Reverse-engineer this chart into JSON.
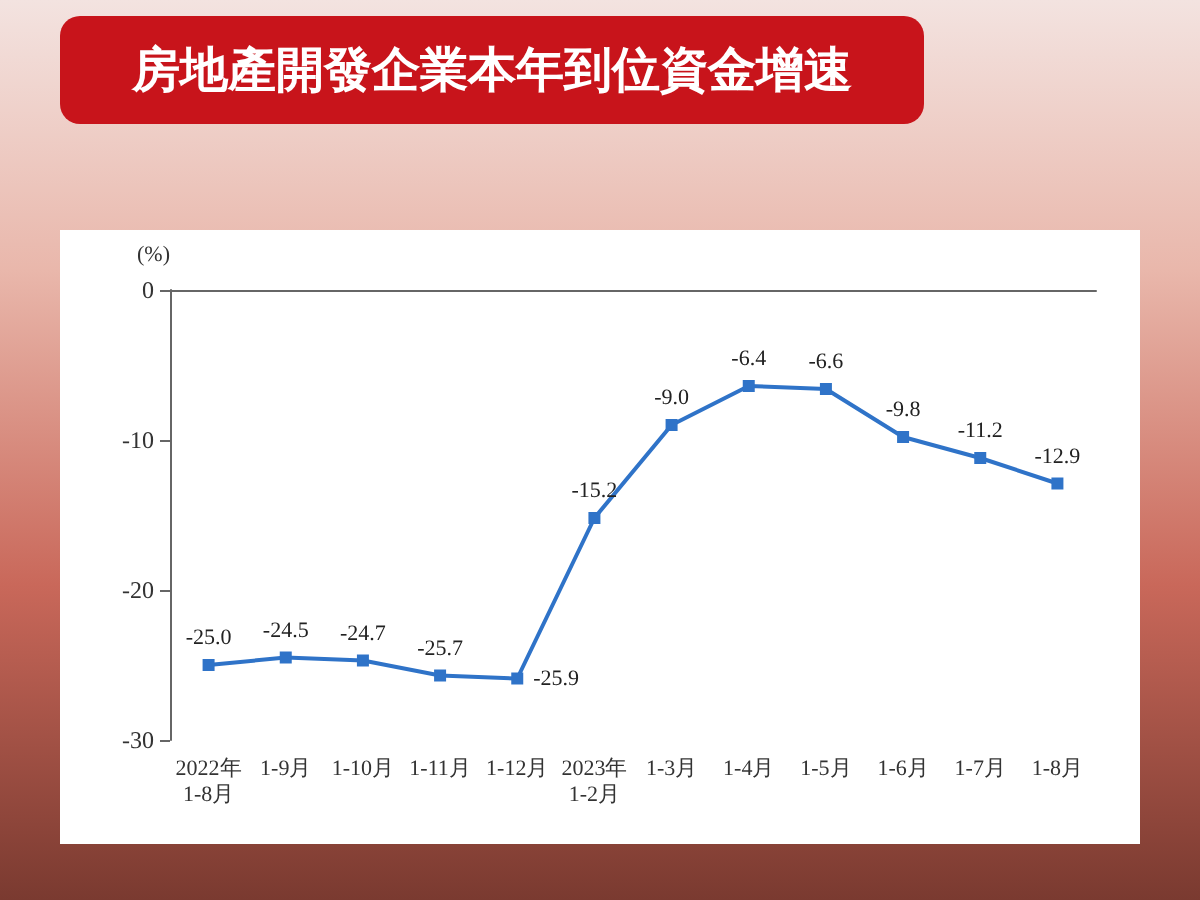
{
  "chart_data": {
    "type": "line",
    "title": "房地產開發企業本年到位資金增速",
    "ylabel": "(%)",
    "categories": [
      "2022年\n1-8月",
      "1-9月",
      "1-10月",
      "1-11月",
      "1-12月",
      "2023年\n1-2月",
      "1-3月",
      "1-4月",
      "1-5月",
      "1-6月",
      "1-7月",
      "1-8月"
    ],
    "series": [
      {
        "color": "#2f73c8",
        "values": [
          -25.0,
          -24.5,
          -24.7,
          -25.7,
          -25.9,
          -15.2,
          -9.0,
          -6.4,
          -6.6,
          -9.8,
          -11.2,
          -12.9
        ],
        "value_labels": [
          "-25.0",
          "-24.5",
          "-24.7",
          "-25.7",
          "-25.9",
          "-15.2",
          "-9.0",
          "-6.4",
          "-6.6",
          "-9.8",
          "-11.2",
          "-12.9"
        ]
      }
    ],
    "ylim": [
      -30,
      0
    ],
    "yticks": [
      0,
      -10,
      -20,
      -30
    ],
    "grid": false,
    "marker": "square",
    "line_style": "solid"
  }
}
